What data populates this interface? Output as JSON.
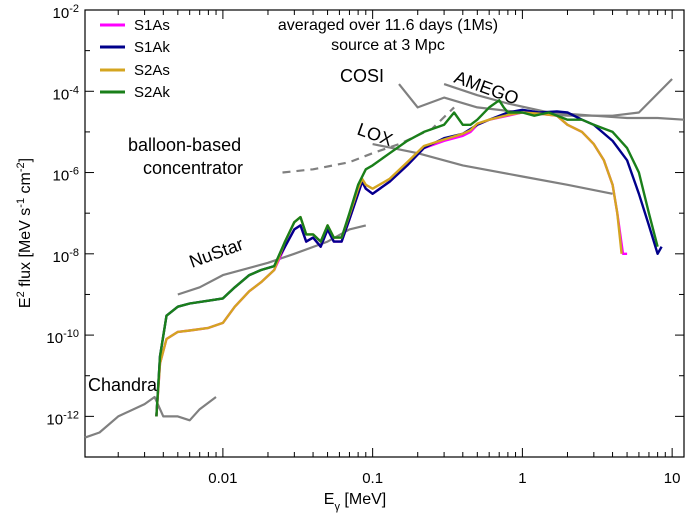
{
  "chart_data": {
    "type": "line",
    "title_line1": "averaged over 11.6 days (1Ms)",
    "title_line2": "source at 3 Mpc",
    "xlabel": {
      "main": "E",
      "sub": "γ",
      "unit": " [MeV]"
    },
    "ylabel": {
      "pre": "E",
      "pre_sup": "2",
      "mid": " flux [MeV s",
      "s_sup": "-1",
      "cm": " cm",
      "cm_sup": "-2",
      "post": "]"
    },
    "x_scale": "log",
    "y_scale": "log",
    "xlim": [
      0.0012,
      12
    ],
    "ylim": [
      1e-13,
      0.01
    ],
    "x_ticks": [
      {
        "value": 0.01,
        "label": "0.01"
      },
      {
        "value": 0.1,
        "label": "0.1"
      },
      {
        "value": 1,
        "label": "1"
      },
      {
        "value": 10,
        "label": "10"
      }
    ],
    "y_ticks": [
      {
        "value": 1e-12,
        "base": "10",
        "exp": "-12"
      },
      {
        "value": 1e-10,
        "base": "10",
        "exp": "-10"
      },
      {
        "value": 1e-08,
        "base": "10",
        "exp": "-8"
      },
      {
        "value": 1e-06,
        "base": "10",
        "exp": "-6"
      },
      {
        "value": 0.0001,
        "base": "10",
        "exp": "-4"
      },
      {
        "value": 0.01,
        "base": "10",
        "exp": "-2"
      }
    ],
    "legend_position": "top-left",
    "series": [
      {
        "name": "S1As",
        "color": "#ff00ff",
        "points": [
          [
            0.0036,
            1e-12
          ],
          [
            0.0038,
            2e-11
          ],
          [
            0.0042,
            8e-11
          ],
          [
            0.005,
            1.2e-10
          ],
          [
            0.006,
            1.3e-10
          ],
          [
            0.008,
            1.5e-10
          ],
          [
            0.01,
            2e-10
          ],
          [
            0.012,
            5e-10
          ],
          [
            0.015,
            1.2e-09
          ],
          [
            0.018,
            2e-09
          ],
          [
            0.022,
            4e-09
          ],
          [
            0.026,
            1.5e-08
          ],
          [
            0.03,
            4e-08
          ],
          [
            0.033,
            5e-08
          ],
          [
            0.036,
            2e-08
          ],
          [
            0.04,
            2.5e-08
          ],
          [
            0.045,
            1.5e-08
          ],
          [
            0.05,
            4e-08
          ],
          [
            0.055,
            2e-08
          ],
          [
            0.062,
            2e-08
          ],
          [
            0.07,
            7e-08
          ],
          [
            0.08,
            3e-07
          ],
          [
            0.085,
            6e-07
          ],
          [
            0.09,
            4e-07
          ],
          [
            0.1,
            3e-07
          ],
          [
            0.13,
            6e-07
          ],
          [
            0.17,
            1.5e-06
          ],
          [
            0.22,
            4e-06
          ],
          [
            0.3,
            6e-06
          ],
          [
            0.4,
            8e-06
          ],
          [
            0.45,
            1e-05
          ],
          [
            0.5,
            1.5e-05
          ],
          [
            0.6,
            2e-05
          ],
          [
            0.8,
            2.5e-05
          ],
          [
            1,
            3e-05
          ],
          [
            1.3,
            2.8e-05
          ],
          [
            1.7,
            2.5e-05
          ],
          [
            2,
            1.5e-05
          ],
          [
            2.5,
            1e-05
          ],
          [
            3,
            5e-06
          ],
          [
            3.5,
            2e-06
          ],
          [
            4,
            5e-07
          ],
          [
            4.3,
            1e-07
          ],
          [
            4.7,
            1e-08
          ],
          [
            5,
            1e-08
          ]
        ]
      },
      {
        "name": "S1Ak",
        "color": "#00008b",
        "points": [
          [
            0.0036,
            1e-12
          ],
          [
            0.0038,
            3e-11
          ],
          [
            0.0042,
            3e-10
          ],
          [
            0.005,
            5e-10
          ],
          [
            0.006,
            6e-10
          ],
          [
            0.008,
            7e-10
          ],
          [
            0.01,
            8e-10
          ],
          [
            0.012,
            1.5e-09
          ],
          [
            0.015,
            3e-09
          ],
          [
            0.018,
            4e-09
          ],
          [
            0.022,
            5e-09
          ],
          [
            0.026,
            1.5e-08
          ],
          [
            0.03,
            4e-08
          ],
          [
            0.033,
            5e-08
          ],
          [
            0.036,
            2e-08
          ],
          [
            0.04,
            2.5e-08
          ],
          [
            0.045,
            1.5e-08
          ],
          [
            0.05,
            4e-08
          ],
          [
            0.055,
            2e-08
          ],
          [
            0.062,
            2e-08
          ],
          [
            0.07,
            7e-08
          ],
          [
            0.08,
            3e-07
          ],
          [
            0.085,
            6e-07
          ],
          [
            0.09,
            4e-07
          ],
          [
            0.1,
            3e-07
          ],
          [
            0.13,
            6e-07
          ],
          [
            0.17,
            1.5e-06
          ],
          [
            0.22,
            4e-06
          ],
          [
            0.3,
            7e-06
          ],
          [
            0.4,
            9e-06
          ],
          [
            0.5,
            1.5e-05
          ],
          [
            0.6,
            2e-05
          ],
          [
            0.8,
            3e-05
          ],
          [
            1,
            3.5e-05
          ],
          [
            1.3,
            3e-05
          ],
          [
            1.7,
            3.2e-05
          ],
          [
            2,
            3e-05
          ],
          [
            2.5,
            2e-05
          ],
          [
            3,
            1.5e-05
          ],
          [
            4,
            6e-06
          ],
          [
            5,
            2e-06
          ],
          [
            6,
            3e-07
          ],
          [
            7,
            5e-08
          ],
          [
            8,
            1e-08
          ],
          [
            8.5,
            1.5e-08
          ]
        ]
      },
      {
        "name": "S2As",
        "color": "#d4a520",
        "points": [
          [
            0.0036,
            1e-12
          ],
          [
            0.0038,
            2e-11
          ],
          [
            0.0042,
            8e-11
          ],
          [
            0.005,
            1.2e-10
          ],
          [
            0.006,
            1.3e-10
          ],
          [
            0.008,
            1.5e-10
          ],
          [
            0.01,
            2e-10
          ],
          [
            0.012,
            5e-10
          ],
          [
            0.015,
            1.2e-09
          ],
          [
            0.018,
            2e-09
          ],
          [
            0.022,
            4e-09
          ],
          [
            0.026,
            2e-08
          ],
          [
            0.03,
            6e-08
          ],
          [
            0.033,
            8e-08
          ],
          [
            0.036,
            3e-08
          ],
          [
            0.04,
            3e-08
          ],
          [
            0.045,
            2e-08
          ],
          [
            0.05,
            5e-08
          ],
          [
            0.055,
            2.5e-08
          ],
          [
            0.062,
            2.5e-08
          ],
          [
            0.07,
            9e-08
          ],
          [
            0.08,
            4e-07
          ],
          [
            0.085,
            7e-07
          ],
          [
            0.09,
            5e-07
          ],
          [
            0.1,
            4e-07
          ],
          [
            0.13,
            7e-07
          ],
          [
            0.17,
            1.8e-06
          ],
          [
            0.22,
            4.5e-06
          ],
          [
            0.3,
            6.5e-06
          ],
          [
            0.4,
            9e-06
          ],
          [
            0.45,
            1.1e-05
          ],
          [
            0.5,
            1.6e-05
          ],
          [
            0.6,
            2e-05
          ],
          [
            0.8,
            2.6e-05
          ],
          [
            1,
            3e-05
          ],
          [
            1.3,
            2.8e-05
          ],
          [
            1.7,
            2.5e-05
          ],
          [
            2,
            1.5e-05
          ],
          [
            2.5,
            1e-05
          ],
          [
            3,
            5e-06
          ],
          [
            3.5,
            2e-06
          ],
          [
            4,
            5e-07
          ],
          [
            4.3,
            1e-07
          ],
          [
            4.6,
            1e-08
          ]
        ]
      },
      {
        "name": "S2Ak",
        "color": "#1a7f1a",
        "points": [
          [
            0.0036,
            1e-12
          ],
          [
            0.0038,
            3e-11
          ],
          [
            0.0042,
            3e-10
          ],
          [
            0.005,
            5e-10
          ],
          [
            0.006,
            6e-10
          ],
          [
            0.008,
            7e-10
          ],
          [
            0.01,
            8e-10
          ],
          [
            0.012,
            1.5e-09
          ],
          [
            0.015,
            3e-09
          ],
          [
            0.018,
            4e-09
          ],
          [
            0.022,
            5e-09
          ],
          [
            0.026,
            2e-08
          ],
          [
            0.03,
            6e-08
          ],
          [
            0.033,
            8e-08
          ],
          [
            0.036,
            3e-08
          ],
          [
            0.04,
            3e-08
          ],
          [
            0.045,
            2e-08
          ],
          [
            0.05,
            5e-08
          ],
          [
            0.055,
            2.5e-08
          ],
          [
            0.062,
            2.5e-08
          ],
          [
            0.07,
            1e-07
          ],
          [
            0.08,
            5e-07
          ],
          [
            0.09,
            1.2e-06
          ],
          [
            0.1,
            1.5e-06
          ],
          [
            0.13,
            3e-06
          ],
          [
            0.17,
            6e-06
          ],
          [
            0.22,
            1e-05
          ],
          [
            0.3,
            1.5e-05
          ],
          [
            0.35,
            3e-05
          ],
          [
            0.4,
            1.5e-05
          ],
          [
            0.45,
            1.5e-05
          ],
          [
            0.5,
            2e-05
          ],
          [
            0.6,
            4e-05
          ],
          [
            0.7,
            6e-05
          ],
          [
            0.75,
            4e-05
          ],
          [
            0.8,
            3e-05
          ],
          [
            1,
            3e-05
          ],
          [
            1.2,
            2.5e-05
          ],
          [
            1.5,
            3e-05
          ],
          [
            2,
            2e-05
          ],
          [
            2.5,
            2e-05
          ],
          [
            3,
            1.5e-05
          ],
          [
            4,
            1e-05
          ],
          [
            5,
            4e-06
          ],
          [
            6,
            1e-06
          ],
          [
            7,
            1e-07
          ],
          [
            8,
            1.5e-08
          ]
        ]
      }
    ],
    "instruments": [
      {
        "name": "Chandra",
        "color": "#808080",
        "dash": false,
        "points": [
          [
            0.0012,
            3e-13
          ],
          [
            0.0015,
            4e-13
          ],
          [
            0.002,
            1e-12
          ],
          [
            0.003,
            2e-12
          ],
          [
            0.0035,
            3e-12
          ],
          [
            0.004,
            1e-12
          ],
          [
            0.005,
            1e-12
          ],
          [
            0.006,
            8e-13
          ],
          [
            0.007,
            1.5e-12
          ],
          [
            0.009,
            3e-12
          ]
        ]
      },
      {
        "name": "NuStar",
        "color": "#808080",
        "dash": false,
        "points": [
          [
            0.005,
            1e-09
          ],
          [
            0.007,
            1.5e-09
          ],
          [
            0.01,
            3e-09
          ],
          [
            0.02,
            6e-09
          ],
          [
            0.03,
            1e-08
          ],
          [
            0.05,
            2e-08
          ],
          [
            0.07,
            4e-08
          ],
          [
            0.09,
            5e-08
          ]
        ]
      },
      {
        "name": "balloon-based concentrator",
        "color": "#808080",
        "dash": true,
        "points": [
          [
            0.025,
            1e-06
          ],
          [
            0.04,
            1.2e-06
          ],
          [
            0.07,
            1.8e-06
          ],
          [
            0.1,
            3e-06
          ],
          [
            0.15,
            5e-06
          ],
          [
            0.25,
            1.2e-05
          ],
          [
            0.35,
            4e-05
          ]
        ]
      },
      {
        "name": "LOX",
        "color": "#808080",
        "dash": false,
        "points": [
          [
            0.1,
            5e-06
          ],
          [
            0.2,
            3e-06
          ],
          [
            0.4,
            1.5e-06
          ],
          [
            1,
            8e-07
          ],
          [
            2,
            5e-07
          ],
          [
            4,
            3e-07
          ]
        ]
      },
      {
        "name": "COSI",
        "color": "#808080",
        "dash": false,
        "points": [
          [
            0.15,
            0.00015
          ],
          [
            0.2,
            4e-05
          ],
          [
            0.3,
            7e-05
          ],
          [
            0.5,
            4e-05
          ],
          [
            1,
            3e-05
          ],
          [
            2,
            2.5e-05
          ],
          [
            4,
            2.5e-05
          ],
          [
            6,
            3e-05
          ],
          [
            10,
            0.0002
          ]
        ]
      },
      {
        "name": "AMEGO",
        "color": "#808080",
        "dash": false,
        "points": [
          [
            0.3,
            0.00015
          ],
          [
            0.5,
            8e-05
          ],
          [
            0.8,
            5e-05
          ],
          [
            1.5,
            3e-05
          ],
          [
            3,
            2.5e-05
          ],
          [
            5,
            2.2e-05
          ],
          [
            8,
            2.2e-05
          ],
          [
            12,
            2e-05
          ]
        ]
      }
    ]
  }
}
